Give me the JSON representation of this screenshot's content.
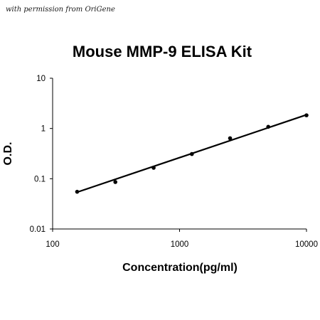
{
  "watermark": "with permission from OriGene",
  "chart_data": {
    "type": "scatter",
    "title": "Mouse MMP-9 ELISA Kit",
    "xlabel": "Concentration(pg/ml)",
    "ylabel": "O.D.",
    "xscale": "log",
    "yscale": "log",
    "xlim": [
      100,
      10000
    ],
    "ylim": [
      0.01,
      10
    ],
    "x_ticks": [
      100,
      1000,
      10000
    ],
    "x_tick_labels": [
      "100",
      "1000",
      "10000"
    ],
    "y_ticks": [
      0.01,
      0.1,
      1,
      10
    ],
    "y_tick_labels": [
      "0.01",
      "0.1",
      "1",
      "10"
    ],
    "grid": false,
    "series": [
      {
        "color": "#000000",
        "points": [
          {
            "x": 156,
            "y": 0.055
          },
          {
            "x": 312,
            "y": 0.086
          },
          {
            "x": 625,
            "y": 0.165
          },
          {
            "x": 1250,
            "y": 0.31
          },
          {
            "x": 2500,
            "y": 0.64
          },
          {
            "x": 5000,
            "y": 1.08
          },
          {
            "x": 10000,
            "y": 1.83
          }
        ],
        "fit_line": {
          "from": {
            "x": 156,
            "y": 0.054
          },
          "to": {
            "x": 10000,
            "y": 1.87
          }
        }
      }
    ]
  }
}
